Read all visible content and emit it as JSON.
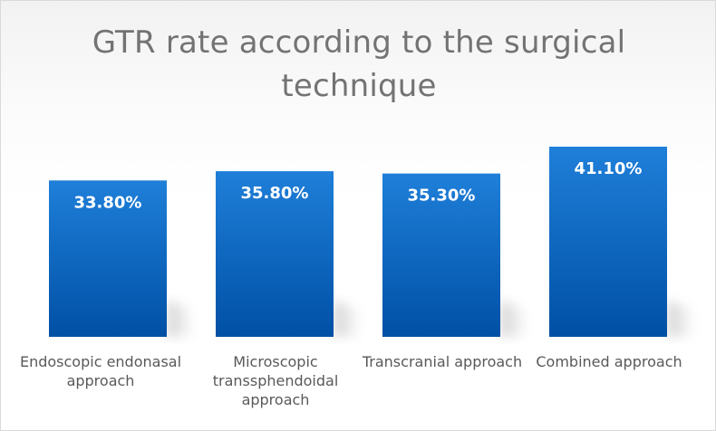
{
  "chart_data": {
    "type": "bar",
    "title": "GTR rate according to the surgical technique",
    "categories": [
      "Endoscopic endonasal approach",
      "Microscopic transsphendoidal approach",
      "Transcranial approach",
      "Combined approach"
    ],
    "values": [
      33.8,
      35.8,
      35.3,
      41.1
    ],
    "data_labels": [
      "33.80%",
      "35.80%",
      "35.30%",
      "41.10%"
    ],
    "xlabel": "",
    "ylabel": "",
    "ylim": [
      0,
      45
    ],
    "grid": false,
    "legend": "none",
    "colors": {
      "bar_top": "#1f7fd9",
      "bar_bottom": "#0050a5",
      "data_label": "#ffffff",
      "title": "#737373",
      "axis_label": "#595959"
    }
  }
}
